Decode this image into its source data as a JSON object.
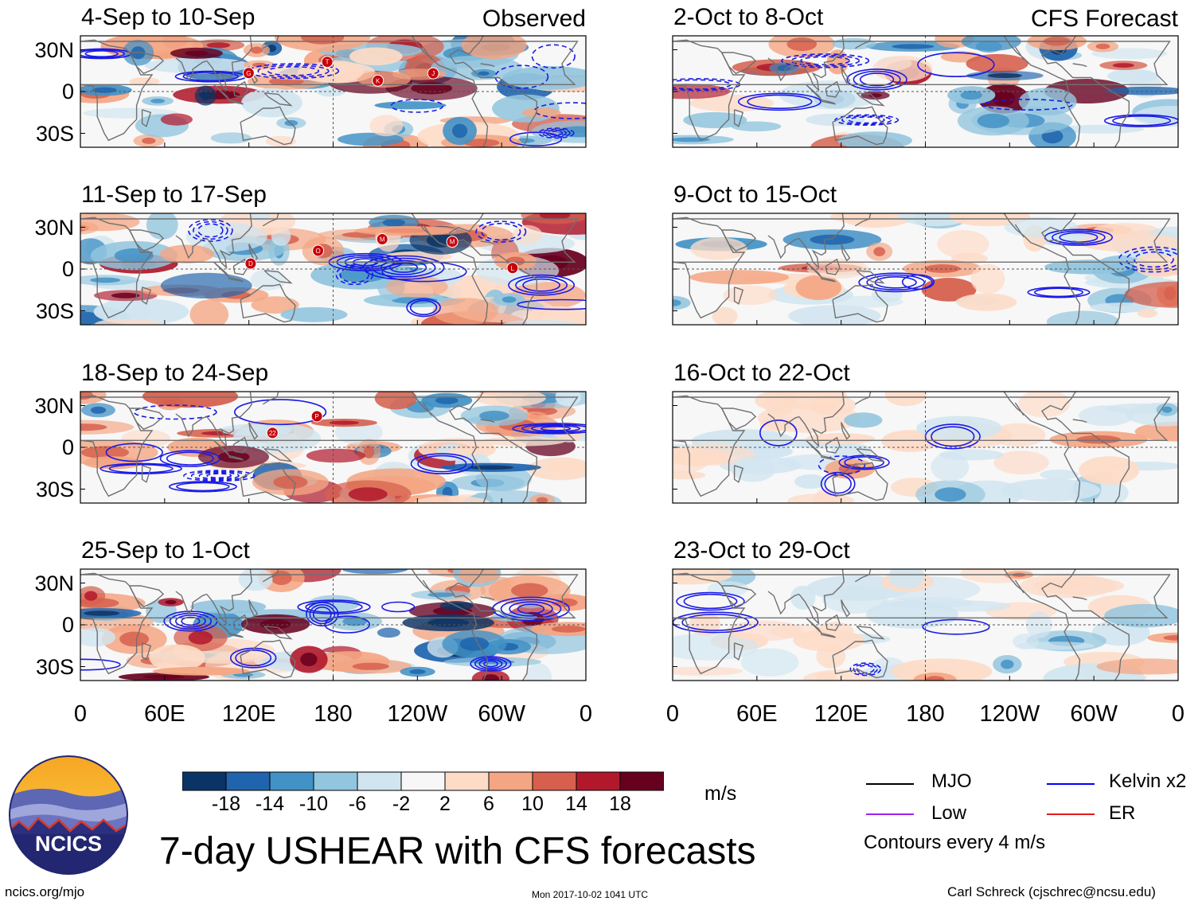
{
  "chart_data": {
    "type": "heatmap",
    "title": "7-day USHEAR with CFS forecasts",
    "units": "m/s",
    "columns": {
      "left": {
        "tag": "Observed"
      },
      "right": {
        "tag": "CFS Forecast"
      }
    },
    "panels": [
      {
        "title": "4-Sep to 10-Sep",
        "column": "left",
        "row": 0,
        "storms": [
          "G",
          "T",
          "K",
          "J"
        ]
      },
      {
        "title": "11-Sep to 17-Sep",
        "column": "left",
        "row": 1,
        "storms": [
          "D",
          "O",
          "M",
          "M",
          "L"
        ]
      },
      {
        "title": "18-Sep to 24-Sep",
        "column": "left",
        "row": 2,
        "storms": [
          "22",
          "P"
        ]
      },
      {
        "title": "25-Sep to 1-Oct",
        "column": "left",
        "row": 3,
        "storms": []
      },
      {
        "title": "2-Oct to 8-Oct",
        "column": "right",
        "row": 0,
        "storms": []
      },
      {
        "title": "9-Oct to 15-Oct",
        "column": "right",
        "row": 1,
        "storms": []
      },
      {
        "title": "16-Oct to 22-Oct",
        "column": "right",
        "row": 2,
        "storms": []
      },
      {
        "title": "23-Oct to 29-Oct",
        "column": "right",
        "row": 3,
        "storms": []
      }
    ],
    "lat_ticks": [
      "30N",
      "0",
      "30S"
    ],
    "lat_values": [
      30,
      0,
      -30
    ],
    "lon_ticks": [
      "0",
      "60E",
      "120E",
      "180",
      "120W",
      "60W",
      "0"
    ],
    "lon_values": [
      0,
      60,
      120,
      180,
      240,
      300,
      360
    ],
    "xlim": [
      0,
      360
    ],
    "ylim": [
      -40,
      40
    ],
    "colorbar": {
      "labels": [
        "-18",
        "-14",
        "-10",
        "-6",
        "-2",
        "2",
        "6",
        "10",
        "14",
        "18"
      ],
      "colors": [
        "#0b3466",
        "#1f64ad",
        "#4392c6",
        "#92c5de",
        "#d1e5f0",
        "#f7f7f7",
        "#fddbc7",
        "#f4a582",
        "#d6604d",
        "#b2182b",
        "#67001f"
      ]
    },
    "legend": [
      {
        "label": "MJO",
        "color": "#000000"
      },
      {
        "label": "Kelvin x2",
        "color": "#0000ff"
      },
      {
        "label": "Low",
        "color": "#a020f0"
      },
      {
        "label": "ER",
        "color": "#e31a1c"
      }
    ],
    "contour_note": "Contours every 4 m/s"
  },
  "logo": {
    "text": "NCICS"
  },
  "footer": {
    "left": "ncics.org/mjo",
    "center": "Mon 2017-10-02 1041 UTC",
    "right": "Carl Schreck (cjschrec@ncsu.edu)"
  },
  "colors": {
    "coast": "#707070",
    "contour": "#1a1ae6",
    "storm": "#c8000a"
  }
}
